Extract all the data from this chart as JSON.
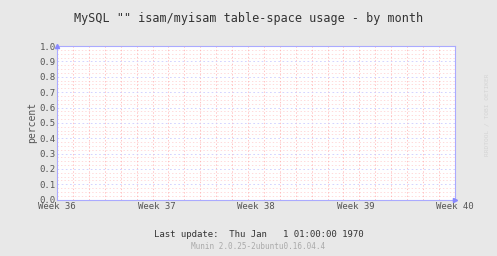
{
  "title": "MySQL \"\" isam/myisam table-space usage - by month",
  "ylabel": "percent",
  "ylim": [
    0.0,
    1.0
  ],
  "yticks": [
    0.0,
    0.1,
    0.2,
    0.3,
    0.4,
    0.5,
    0.6,
    0.7,
    0.8,
    0.9,
    1.0
  ],
  "xtick_labels": [
    "Week 36",
    "Week 37",
    "Week 38",
    "Week 39",
    "Week 40"
  ],
  "footer": "Last update:  Thu Jan   1 01:00:00 1970",
  "footer2": "Munin 2.0.25-2ubuntu0.16.04.4",
  "watermark": "RRDTOOL / TOBI OETIKER",
  "bg_color": "#e8e8e8",
  "plot_bg_color": "#ffffff",
  "hgrid_major_color": "#ccccff",
  "hgrid_minor_color": "#ffcccc",
  "vgrid_color": "#ffaaaa",
  "axis_color": "#aaaaff",
  "title_color": "#333333",
  "tick_color": "#555555",
  "footer_color": "#333333",
  "footer2_color": "#aaaaaa",
  "watermark_color": "#cccccc"
}
